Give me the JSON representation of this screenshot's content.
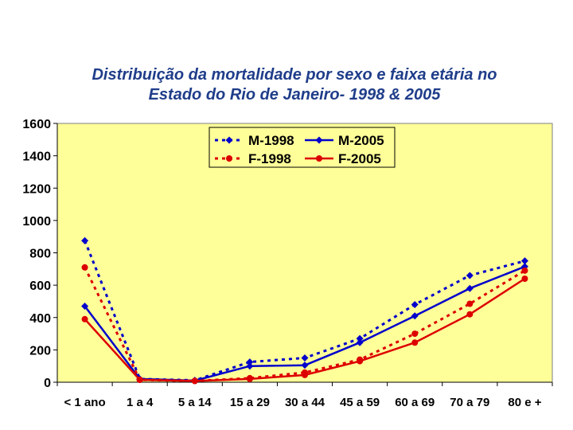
{
  "chart_data": {
    "type": "line",
    "title_line1": "Distribuição da mortalidade por sexo e faixa etária no",
    "title_line2": "Estado do Rio de Janeiro- 1998 & 2005",
    "xlabel": "",
    "ylabel": "",
    "categories": [
      "< 1 ano",
      "1 a  4",
      "5 a 14",
      "15 a 29",
      "30 a 44",
      "45 a 59",
      "60 a 69",
      "70 a 79",
      "80 e +"
    ],
    "ylim": [
      0,
      1600
    ],
    "yticks": [
      0,
      200,
      400,
      600,
      800,
      1000,
      1200,
      1400,
      1600
    ],
    "legend_position": "top-right",
    "series": [
      {
        "name": "M-1998",
        "color": "#0000cc",
        "style": "dotted",
        "marker": "diamond",
        "values": [
          875,
          20,
          12,
          125,
          150,
          270,
          480,
          660,
          750
        ]
      },
      {
        "name": "M-2005",
        "color": "#0000cc",
        "style": "solid",
        "marker": "diamond",
        "values": [
          470,
          20,
          10,
          100,
          105,
          245,
          410,
          580,
          715
        ]
      },
      {
        "name": "F-1998",
        "color": "#dd0000",
        "style": "dotted",
        "marker": "circle",
        "values": [
          710,
          15,
          8,
          25,
          60,
          140,
          300,
          485,
          690
        ]
      },
      {
        "name": "F-2005",
        "color": "#dd0000",
        "style": "solid",
        "marker": "circle",
        "values": [
          390,
          15,
          8,
          20,
          45,
          130,
          245,
          420,
          640
        ]
      }
    ]
  }
}
